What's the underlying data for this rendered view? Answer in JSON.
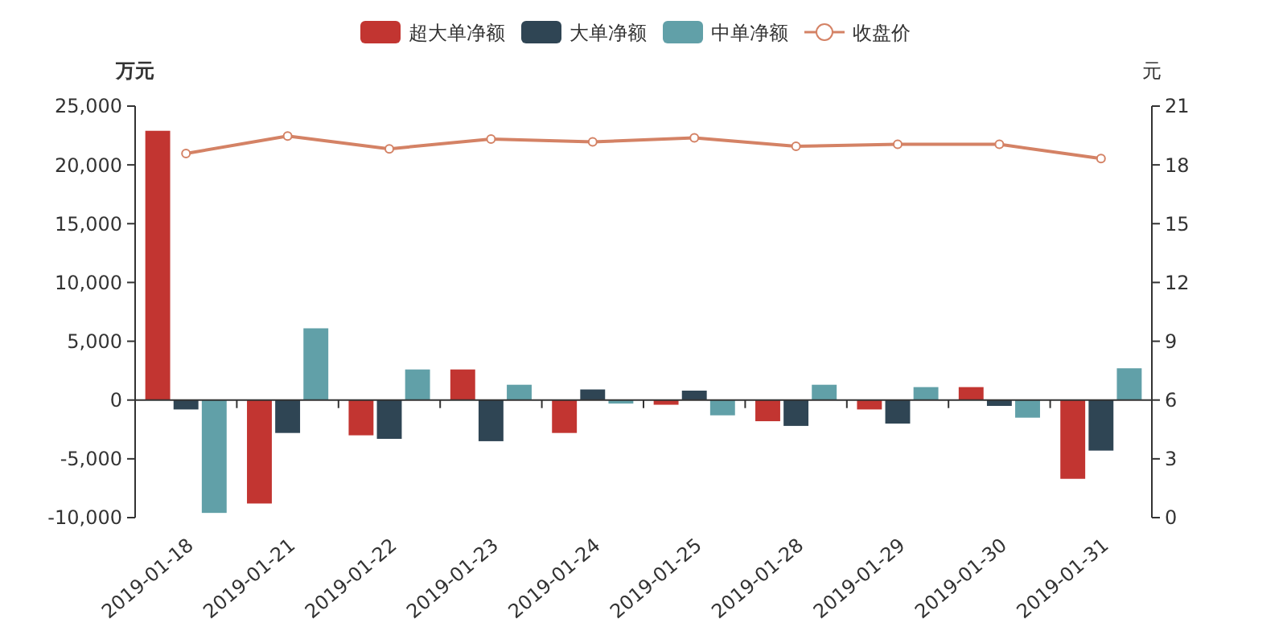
{
  "chart_data": {
    "type": "bar",
    "ylabel": "万元",
    "y2label": "元",
    "categories": [
      "2019-01-18",
      "2019-01-21",
      "2019-01-22",
      "2019-01-23",
      "2019-01-24",
      "2019-01-25",
      "2019-01-28",
      "2019-01-29",
      "2019-01-30",
      "2019-01-31"
    ],
    "series": [
      {
        "name": "超大单净额",
        "color": "#c23531",
        "values": [
          22900,
          -8800,
          -3000,
          2600,
          -2800,
          -400,
          -1800,
          -800,
          1100,
          -6700
        ]
      },
      {
        "name": "大单净额",
        "color": "#2f4554",
        "values": [
          -800,
          -2800,
          -3300,
          -3500,
          900,
          800,
          -2200,
          -2000,
          -500,
          -4300
        ]
      },
      {
        "name": "中单净额",
        "color": "#61a0a8",
        "values": [
          -9600,
          6100,
          2600,
          1300,
          -300,
          -1300,
          1300,
          1100,
          -1500,
          2700
        ]
      },
      {
        "name": "收盘价",
        "type": "line",
        "axis": "y2",
        "color": "#d48265",
        "marker": "circle",
        "values": [
          18.58,
          19.47,
          18.82,
          19.32,
          19.17,
          19.38,
          18.95,
          19.05,
          19.05,
          18.32
        ]
      }
    ],
    "ylim": [
      -10000,
      25000
    ],
    "yticks": [
      {
        "value": -10000,
        "label": "-10,000"
      },
      {
        "value": -5000,
        "label": "-5,000"
      },
      0,
      {
        "value": 5000,
        "label": "5,000"
      },
      {
        "value": 10000,
        "label": "10,000"
      },
      {
        "value": 15000,
        "label": "15,000"
      },
      {
        "value": 20000,
        "label": "20,000"
      },
      {
        "value": 25000,
        "label": "25,000"
      }
    ],
    "y2lim": [
      0,
      21
    ],
    "y2ticks": [
      0,
      3,
      6,
      9,
      12,
      15,
      18,
      21
    ],
    "legend": "top"
  }
}
